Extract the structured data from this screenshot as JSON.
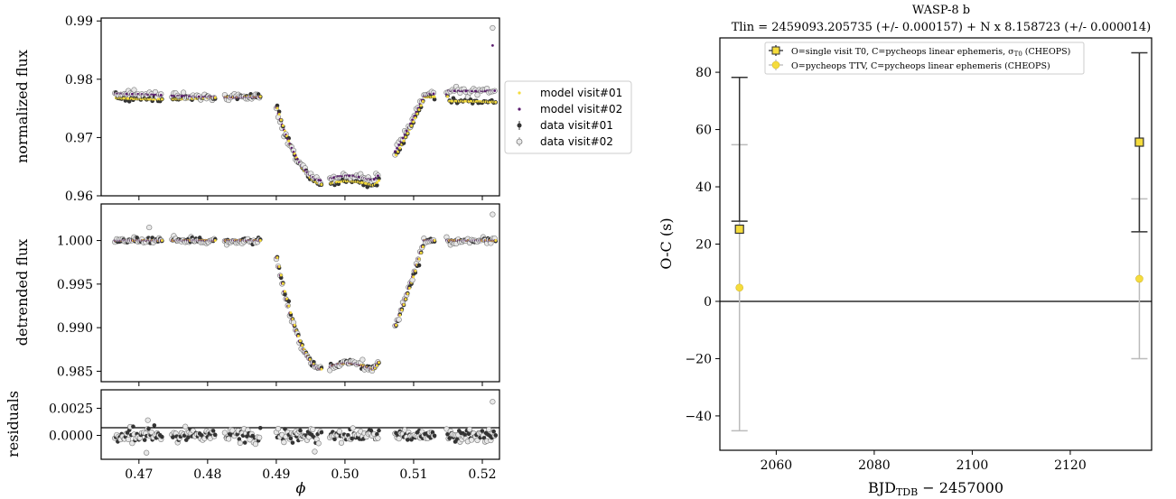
{
  "chart_data": [
    {
      "type": "scatter",
      "panel": "normalized flux",
      "ylabel": "normalized flux",
      "xlim": [
        0.4645,
        0.5225
      ],
      "ylim": [
        0.96,
        0.9905
      ],
      "yticks": [
        0.96,
        0.97,
        0.98,
        0.99
      ],
      "ytick_labels": [
        "0.96",
        "0.97",
        "0.98",
        "0.99"
      ],
      "legend": {
        "placement": "right-outside",
        "entries": [
          "model visit#01",
          "model visit#02",
          "data visit#01",
          "data visit#02"
        ]
      },
      "outliers": [
        {
          "x": 0.5215,
          "y": 0.9888
        },
        {
          "x": 0.5215,
          "y": 0.9858
        }
      ]
    },
    {
      "type": "scatter",
      "panel": "detrended flux",
      "ylabel": "detrended flux",
      "xlim": [
        0.4645,
        0.5225
      ],
      "ylim": [
        0.9838,
        1.0042
      ],
      "yticks": [
        0.985,
        0.99,
        0.995,
        1.0
      ],
      "ytick_labels": [
        "0.985",
        "0.990",
        "0.995",
        "1.000"
      ],
      "outliers": [
        {
          "x": 0.5215,
          "y": 1.003
        },
        {
          "x": 0.4715,
          "y": 1.0015
        }
      ]
    },
    {
      "type": "scatter",
      "panel": "residuals",
      "ylabel": "residuals",
      "xlabel": "ϕ",
      "xlim": [
        0.4645,
        0.5225
      ],
      "ylim": [
        -0.0022,
        0.0042
      ],
      "yticks": [
        0.0,
        0.0025
      ],
      "ytick_labels": [
        "0.0000",
        "0.0025"
      ],
      "xticks": [
        0.47,
        0.48,
        0.49,
        0.5,
        0.51,
        0.52
      ],
      "xtick_labels": [
        "0.47",
        "0.48",
        "0.49",
        "0.50",
        "0.51",
        "0.52"
      ]
    },
    {
      "type": "scatter",
      "title": "WASP-8 b",
      "subtitle": "Tlin = 2459093.205735 (+/- 0.000157) + N x 8.158723 (+/- 0.000014)",
      "xlabel": "BJD_TDB − 2457000",
      "ylabel": "O-C (s)",
      "xlim": [
        2048.5,
        2136.6
      ],
      "ylim": [
        -52,
        92
      ],
      "xticks": [
        2060,
        2080,
        2100,
        2120
      ],
      "xtick_labels": [
        "2060",
        "2080",
        "2100",
        "2120"
      ],
      "yticks": [
        -40,
        -20,
        0,
        20,
        40,
        60,
        80
      ],
      "ytick_labels": [
        "−40",
        "−20",
        "0",
        "20",
        "40",
        "60",
        "80"
      ],
      "series": [
        {
          "name": "O=single visit T0, C=pycheops linear ephemeris, σT0 (CHEOPS)",
          "marker": "square",
          "color": "#f5dc3c",
          "points": [
            {
              "x": 2052.5,
              "y": 25.2,
              "yerr_lo": 28.0,
              "yerr_hi": 78.2
            },
            {
              "x": 2134.1,
              "y": 55.6,
              "yerr_lo": 24.3,
              "yerr_hi": 86.8
            }
          ]
        },
        {
          "name": "O=pycheops TTV, C=pycheops linear ephemeris (CHEOPS)",
          "marker": "circle",
          "color": "#f5dc3c",
          "points": [
            {
              "x": 2052.5,
              "y": 4.8,
              "yerr_lo": -45.2,
              "yerr_hi": 54.7
            },
            {
              "x": 2134.1,
              "y": 7.9,
              "yerr_lo": -20.0,
              "yerr_hi": 35.8
            }
          ]
        }
      ],
      "legend": {
        "placement": "top-center"
      }
    }
  ],
  "colors": {
    "model_visit01": "#f5dc3c",
    "model_visit02": "#5a1a6e",
    "data_visit01": "#333333",
    "data_visit02": "#e8e8e8",
    "marker_yellow": "#f5dc3c",
    "errbar_light": "#bbbbbb",
    "errbar_dark": "#333333"
  }
}
